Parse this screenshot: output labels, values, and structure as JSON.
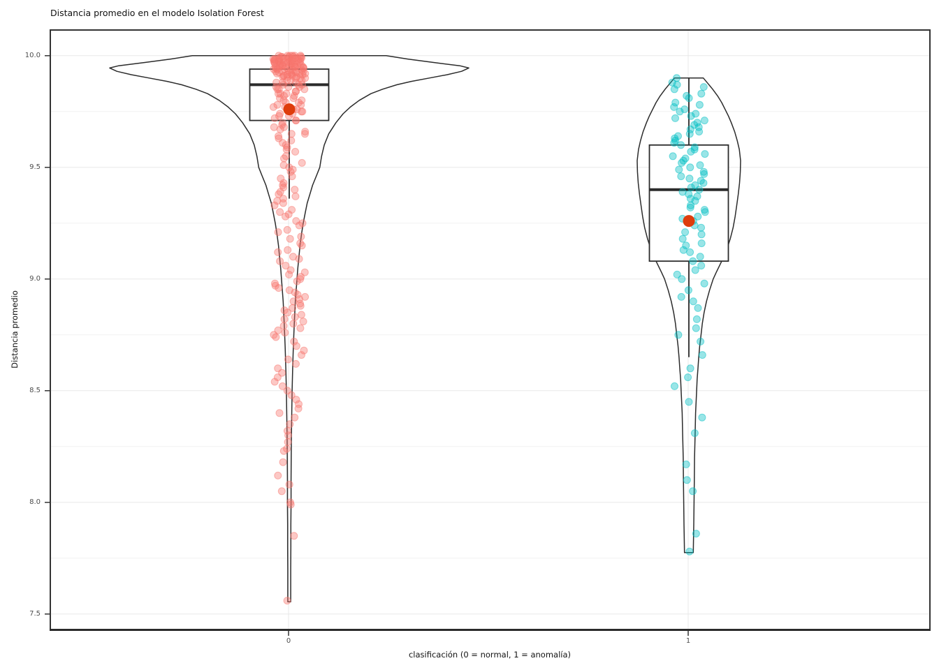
{
  "title": "Distancia promedio en el modelo Isolation Forest",
  "y_axis": {
    "title": "Distancia promedio",
    "tick_labels": [
      "10.0",
      "9.5",
      "9.0",
      "8.5",
      "8.0",
      "7.5"
    ],
    "tick_values": [
      10.0,
      9.5,
      9.0,
      8.5,
      8.0,
      7.5
    ],
    "minor_tick_values": [
      9.75,
      9.25,
      8.75,
      8.25,
      7.75
    ]
  },
  "x_axis": {
    "title": "clasificación (0 = normal, 1 = anomalía)",
    "tick_labels": [
      "0",
      "1"
    ]
  },
  "style": {
    "background": "#FFFFFF",
    "panel_background": "#FFFFFF",
    "panel_border": "#333333",
    "grid_major": "#E8E8E8",
    "grid_minor": "#F2F2F2",
    "tick_label_color": "#4D4D4D",
    "outline_color": "#2B2B2B",
    "mean_dot_color": "#DE3D0C"
  },
  "chart_data": {
    "type": "violin",
    "subtype": "violin outline + boxplot + jittered points + red mean dot per category",
    "title": "Distancia promedio en el modelo Isolation Forest",
    "xlabel": "clasificación (0 = normal, 1 = anomalía)",
    "ylabel": "Distancia promedio",
    "categories": [
      "0",
      "1"
    ],
    "ylim": [
      7.43,
      10.12
    ],
    "grid": "horizontal major (0.5 step) + minor (0.25 step), vertical major at each category",
    "legend": "none",
    "groups": [
      {
        "category": "0",
        "point_color": "#F8766D",
        "box": {
          "q1": 9.71,
          "median": 9.87,
          "q3": 9.94,
          "whisker_low": 9.36,
          "whisker_high": 10.0
        },
        "mean": 9.76,
        "violin_range": [
          7.555,
          10.0
        ],
        "violin_profile": [
          [
            10.0,
            0.54
          ],
          [
            9.985,
            0.66
          ],
          [
            9.97,
            0.8
          ],
          [
            9.955,
            0.95
          ],
          [
            9.945,
            1.0
          ],
          [
            9.93,
            0.96
          ],
          [
            9.915,
            0.88
          ],
          [
            9.9,
            0.78
          ],
          [
            9.885,
            0.68
          ],
          [
            9.87,
            0.6
          ],
          [
            9.85,
            0.52
          ],
          [
            9.83,
            0.455
          ],
          [
            9.8,
            0.39
          ],
          [
            9.77,
            0.34
          ],
          [
            9.74,
            0.3
          ],
          [
            9.7,
            0.26
          ],
          [
            9.65,
            0.22
          ],
          [
            9.6,
            0.195
          ],
          [
            9.55,
            0.18
          ],
          [
            9.5,
            0.17
          ],
          [
            9.46,
            0.15
          ],
          [
            9.42,
            0.13
          ],
          [
            9.38,
            0.115
          ],
          [
            9.34,
            0.1
          ],
          [
            9.3,
            0.09
          ],
          [
            9.25,
            0.078
          ],
          [
            9.2,
            0.068
          ],
          [
            9.15,
            0.06
          ],
          [
            9.1,
            0.054
          ],
          [
            9.05,
            0.048
          ],
          [
            9.0,
            0.043
          ],
          [
            8.9,
            0.034
          ],
          [
            8.8,
            0.028
          ],
          [
            8.7,
            0.023
          ],
          [
            8.6,
            0.019
          ],
          [
            8.5,
            0.016
          ],
          [
            8.4,
            0.014
          ],
          [
            8.3,
            0.012
          ],
          [
            8.2,
            0.011
          ],
          [
            8.1,
            0.01
          ],
          [
            8.0,
            0.01
          ],
          [
            7.9,
            0.009
          ],
          [
            7.8,
            0.009
          ],
          [
            7.7,
            0.008
          ],
          [
            7.6,
            0.008
          ],
          [
            7.555,
            0.008
          ]
        ],
        "points": [
          10,
          10,
          10,
          10,
          10,
          10,
          9.995,
          9.995,
          9.995,
          9.995,
          9.995,
          9.99,
          9.99,
          9.99,
          9.99,
          9.99,
          9.99,
          9.985,
          9.985,
          9.985,
          9.985,
          9.985,
          9.98,
          9.98,
          9.98,
          9.98,
          9.98,
          9.98,
          9.975,
          9.975,
          9.975,
          9.975,
          9.97,
          9.97,
          9.97,
          9.97,
          9.97,
          9.965,
          9.965,
          9.965,
          9.965,
          9.96,
          9.96,
          9.96,
          9.96,
          9.96,
          9.955,
          9.955,
          9.955,
          9.955,
          9.95,
          9.95,
          9.95,
          9.95,
          9.95,
          9.945,
          9.945,
          9.945,
          9.945,
          9.94,
          9.94,
          9.94,
          9.94,
          9.935,
          9.935,
          9.935,
          9.93,
          9.93,
          9.93,
          9.93,
          9.925,
          9.925,
          9.925,
          9.92,
          9.92,
          9.92,
          9.92,
          9.915,
          9.915,
          9.915,
          9.91,
          9.91,
          9.91,
          9.905,
          9.905,
          9.905,
          9.9,
          9.9,
          9.9,
          9.89,
          9.89,
          9.89,
          9.88,
          9.88,
          9.88,
          9.87,
          9.87,
          9.87,
          9.86,
          9.86,
          9.86,
          9.85,
          9.85,
          9.85,
          9.84,
          9.84,
          9.83,
          9.83,
          9.83,
          9.82,
          9.82,
          9.81,
          9.81,
          9.8,
          9.8,
          9.79,
          9.79,
          9.78,
          9.78,
          9.77,
          9.77,
          9.76,
          9.76,
          9.75,
          9.75,
          9.74,
          9.74,
          9.73,
          9.73,
          9.72,
          9.71,
          9.71,
          9.7,
          9.69,
          9.68,
          9.68,
          9.67,
          9.66,
          9.65,
          9.65,
          9.64,
          9.63,
          9.62,
          9.61,
          9.6,
          9.59,
          9.58,
          9.57,
          9.55,
          9.54,
          9.52,
          9.51,
          9.5,
          9.49,
          9.48,
          9.46,
          9.45,
          9.43,
          9.42,
          9.41,
          9.4,
          9.39,
          9.38,
          9.37,
          9.36,
          9.35,
          9.34,
          9.33,
          9.31,
          9.3,
          9.29,
          9.28,
          9.26,
          9.25,
          9.24,
          9.22,
          9.21,
          9.19,
          9.18,
          9.16,
          9.15,
          9.13,
          9.12,
          9.1,
          9.09,
          9.08,
          9.06,
          9.04,
          9.03,
          9.02,
          9.01,
          9.0,
          8.99,
          8.98,
          8.97,
          8.96,
          8.95,
          8.94,
          8.93,
          8.92,
          8.91,
          8.9,
          8.89,
          8.88,
          8.87,
          8.86,
          8.85,
          8.84,
          8.83,
          8.82,
          8.81,
          8.8,
          8.79,
          8.78,
          8.77,
          8.76,
          8.75,
          8.74,
          8.72,
          8.7,
          8.68,
          8.66,
          8.64,
          8.62,
          8.6,
          8.58,
          8.56,
          8.54,
          8.52,
          8.5,
          8.48,
          8.46,
          8.44,
          8.42,
          8.4,
          8.38,
          8.35,
          8.32,
          8.3,
          8.27,
          8.24,
          8.23,
          8.18,
          8.12,
          8.08,
          8.05,
          8.0,
          7.99,
          7.85,
          7.56
        ]
      },
      {
        "category": "1",
        "point_color": "#00BFC4",
        "box": {
          "q1": 9.08,
          "median": 9.4,
          "q3": 9.6,
          "whisker_low": 8.65,
          "whisker_high": 9.9
        },
        "mean": 9.26,
        "violin_range": [
          7.775,
          9.9
        ],
        "violin_profile": [
          [
            9.9,
            0.28
          ],
          [
            9.875,
            0.37
          ],
          [
            9.85,
            0.46
          ],
          [
            9.82,
            0.555
          ],
          [
            9.79,
            0.635
          ],
          [
            9.76,
            0.7
          ],
          [
            9.73,
            0.765
          ],
          [
            9.7,
            0.82
          ],
          [
            9.66,
            0.885
          ],
          [
            9.62,
            0.935
          ],
          [
            9.58,
            0.975
          ],
          [
            9.53,
            1.0
          ],
          [
            9.48,
            0.995
          ],
          [
            9.43,
            0.98
          ],
          [
            9.38,
            0.955
          ],
          [
            9.33,
            0.925
          ],
          [
            9.28,
            0.895
          ],
          [
            9.23,
            0.855
          ],
          [
            9.18,
            0.8
          ],
          [
            9.13,
            0.73
          ],
          [
            9.08,
            0.635
          ],
          [
            9.03,
            0.53
          ],
          [
            9.0,
            0.47
          ],
          [
            8.95,
            0.4
          ],
          [
            8.9,
            0.34
          ],
          [
            8.85,
            0.295
          ],
          [
            8.8,
            0.26
          ],
          [
            8.75,
            0.235
          ],
          [
            8.7,
            0.21
          ],
          [
            8.65,
            0.19
          ],
          [
            8.6,
            0.175
          ],
          [
            8.55,
            0.16
          ],
          [
            8.5,
            0.15
          ],
          [
            8.4,
            0.13
          ],
          [
            8.3,
            0.12
          ],
          [
            8.2,
            0.11
          ],
          [
            8.1,
            0.105
          ],
          [
            8.0,
            0.1
          ],
          [
            7.9,
            0.095
          ],
          [
            7.85,
            0.09
          ],
          [
            7.775,
            0.085
          ]
        ],
        "points": [
          9.9,
          9.88,
          9.87,
          9.86,
          9.85,
          9.83,
          9.82,
          9.81,
          9.79,
          9.78,
          9.77,
          9.76,
          9.75,
          9.74,
          9.73,
          9.72,
          9.71,
          9.7,
          9.69,
          9.68,
          9.67,
          9.66,
          9.65,
          9.64,
          9.63,
          9.62,
          9.61,
          9.6,
          9.59,
          9.58,
          9.57,
          9.56,
          9.55,
          9.54,
          9.53,
          9.52,
          9.51,
          9.5,
          9.49,
          9.48,
          9.47,
          9.46,
          9.45,
          9.44,
          9.43,
          9.42,
          9.41,
          9.4,
          9.39,
          9.38,
          9.37,
          9.36,
          9.35,
          9.33,
          9.32,
          9.31,
          9.3,
          9.28,
          9.27,
          9.26,
          9.24,
          9.23,
          9.21,
          9.2,
          9.18,
          9.16,
          9.15,
          9.13,
          9.12,
          9.1,
          9.08,
          9.06,
          9.04,
          9.02,
          9.0,
          8.98,
          8.95,
          8.92,
          8.9,
          8.87,
          8.82,
          8.78,
          8.75,
          8.72,
          8.66,
          8.6,
          8.56,
          8.52,
          8.45,
          8.38,
          8.31,
          8.17,
          8.1,
          8.05,
          7.86,
          7.78
        ]
      }
    ]
  }
}
